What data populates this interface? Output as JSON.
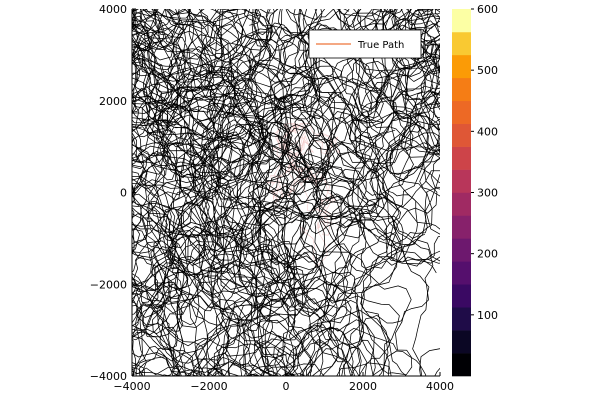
{
  "chart_data": {
    "type": "line",
    "title": "",
    "xlabel": "",
    "ylabel": "",
    "xlim": [
      -4000,
      4000
    ],
    "ylim": [
      -4000,
      4000
    ],
    "x_ticks": [
      -4000,
      -2000,
      0,
      2000,
      4000
    ],
    "y_ticks": [
      -4000,
      -2000,
      0,
      2000,
      4000
    ],
    "x_tick_labels": [
      "−4000",
      "−2000",
      "0",
      "2000",
      "4000"
    ],
    "y_tick_labels": [
      "−4000",
      "−2000",
      "0",
      "2000",
      "4000"
    ],
    "grid": false,
    "legend": {
      "position": "top-right",
      "entries": [
        {
          "name": "True Path",
          "color": "#f08c5a"
        }
      ]
    },
    "series": [
      {
        "name": "True Path",
        "color": "#f08c5a",
        "description_visible": "dense tangle of trajectory segments covering the whole domain, drawn mostly in black (color mapped by step index)"
      }
    ],
    "colorbar": {
      "colormap": "inferno",
      "range": [
        0,
        600
      ],
      "ticks": [
        100,
        200,
        300,
        400,
        500,
        600
      ],
      "tick_labels": [
        "100",
        "200",
        "300",
        "400",
        "500",
        "600"
      ],
      "levels": 16,
      "colors": [
        "#000004",
        "#0b0724",
        "#1f0c48",
        "#3a0963",
        "#550f6d",
        "#6d186e",
        "#87216b",
        "#a02a63",
        "#b8365a",
        "#cd4449",
        "#df5736",
        "#ed6925",
        "#f57d15",
        "#fb9b06",
        "#f9c932",
        "#fcffa4"
      ]
    }
  }
}
